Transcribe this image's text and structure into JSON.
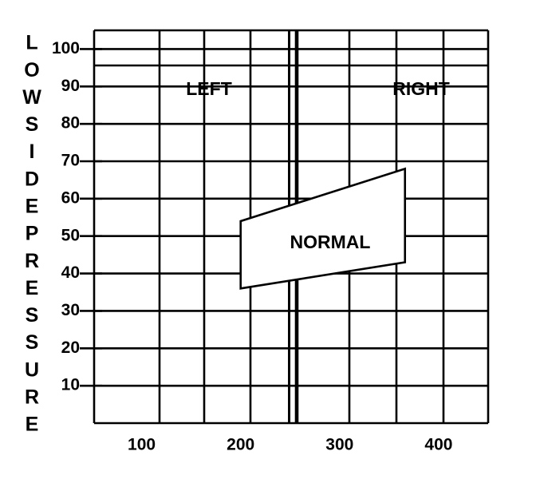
{
  "chart_data": {
    "type": "area",
    "ylabel": "LOW SIDE PRESSURE",
    "x_ticks": [
      100,
      200,
      300,
      400
    ],
    "y_ticks": [
      10,
      20,
      30,
      40,
      50,
      60,
      70,
      80,
      90,
      100
    ],
    "xlim": [
      52,
      450
    ],
    "ylim": [
      0,
      105
    ],
    "grid": true,
    "divider_x": [
      249,
      256
    ],
    "regions": {
      "left": "LEFT",
      "right": "RIGHT",
      "normal": "NORMAL"
    },
    "normal_band": {
      "x": [
        200,
        366
      ],
      "lower": [
        36,
        43
      ],
      "upper": [
        54,
        68
      ]
    },
    "colors": {
      "ink": "#000000",
      "background": "#ffffff"
    }
  }
}
